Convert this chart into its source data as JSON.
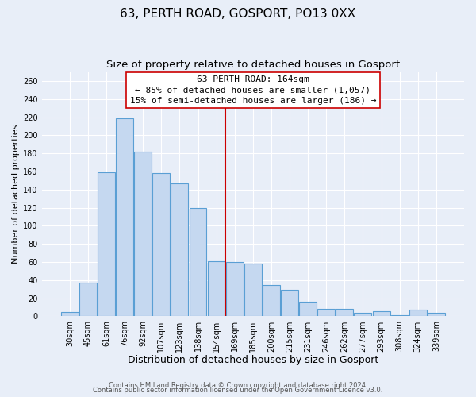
{
  "title": "63, PERTH ROAD, GOSPORT, PO13 0XX",
  "subtitle": "Size of property relative to detached houses in Gosport",
  "xlabel": "Distribution of detached houses by size in Gosport",
  "ylabel": "Number of detached properties",
  "categories": [
    "30sqm",
    "45sqm",
    "61sqm",
    "76sqm",
    "92sqm",
    "107sqm",
    "123sqm",
    "138sqm",
    "154sqm",
    "169sqm",
    "185sqm",
    "200sqm",
    "215sqm",
    "231sqm",
    "246sqm",
    "262sqm",
    "277sqm",
    "293sqm",
    "308sqm",
    "324sqm",
    "339sqm"
  ],
  "values": [
    5,
    37,
    159,
    219,
    182,
    158,
    147,
    120,
    61,
    60,
    58,
    35,
    29,
    16,
    8,
    8,
    4,
    6,
    1,
    7,
    4
  ],
  "bar_color": "#c5d8f0",
  "bar_edge_color": "#5a9fd4",
  "vline_color": "#cc0000",
  "annotation_line1": "63 PERTH ROAD: 164sqm",
  "annotation_line2": "← 85% of detached houses are smaller (1,057)",
  "annotation_line3": "15% of semi-detached houses are larger (186) →",
  "annotation_box_color": "#ffffff",
  "annotation_box_edge": "#cc0000",
  "footer_line1": "Contains HM Land Registry data © Crown copyright and database right 2024.",
  "footer_line2": "Contains public sector information licensed under the Open Government Licence v3.0.",
  "background_color": "#e8eef8",
  "plot_background": "#e8eef8",
  "title_fontsize": 11,
  "subtitle_fontsize": 9.5,
  "ylabel_fontsize": 8,
  "xlabel_fontsize": 9,
  "tick_fontsize": 7,
  "annotation_fontsize": 8,
  "footer_fontsize": 6,
  "ylim": [
    0,
    270
  ],
  "yticks": [
    0,
    20,
    40,
    60,
    80,
    100,
    120,
    140,
    160,
    180,
    200,
    220,
    240,
    260
  ],
  "vline_bar_index": 8.5
}
